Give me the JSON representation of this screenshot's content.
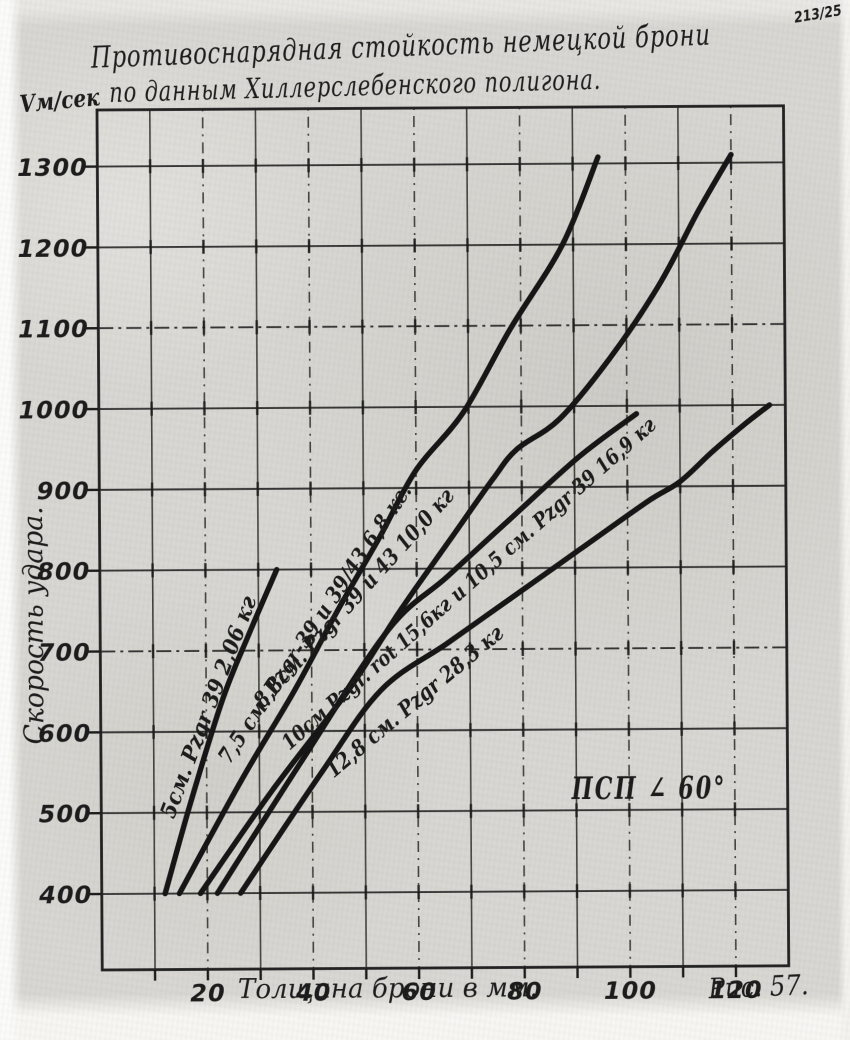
{
  "page": {
    "corner_note": "213/25",
    "paper_color": "#d8d7d2",
    "ink_color": "#1f1e1c"
  },
  "title": {
    "line1": "Противоснарядная  стойкость  немецкой  брони",
    "line2": "по  данным  Хиллерслебенского  полигона."
  },
  "y_axis": {
    "unit_label": "Vм/сек",
    "title": "Скорость  удара.",
    "ticks": [
      400,
      500,
      600,
      700,
      800,
      900,
      1000,
      1100,
      1200,
      1300
    ]
  },
  "x_axis": {
    "title": "Толщина  брони  в  мм.",
    "ticks": [
      20,
      40,
      60,
      80,
      100,
      120
    ]
  },
  "annotation": "ПСП ∠ 60°",
  "figure_caption": "Рис. 57.",
  "chart_data": {
    "type": "line",
    "title": "Противоснарядная стойкость немецкой брони по данным Хиллерслебенского полигона",
    "xlabel": "Толщина брони в мм",
    "ylabel": "Скорость удара, V м/сек",
    "xlim": [
      0,
      130
    ],
    "ylim": [
      306,
      1370
    ],
    "x_grid_step": 10,
    "y_grid_step": 100,
    "x_label_ticks": [
      20,
      40,
      60,
      80,
      100,
      120
    ],
    "y_label_ticks": [
      400,
      500,
      600,
      700,
      800,
      900,
      1000,
      1100,
      1200,
      1300
    ],
    "grid": true,
    "annotation": "ПСП ∠ 60°",
    "series": [
      {
        "name": "5 см Pzgr 39, 2,06 кг",
        "label": "5см. Pzgr 39 2,06 кг",
        "points": [
          [
            12,
            400
          ],
          [
            17,
            514
          ],
          [
            23,
            638
          ],
          [
            28,
            718
          ],
          [
            33.5,
            800
          ]
        ]
      },
      {
        "name": "7,5 см Pzgr 39 и 39/43, 6,8 кг",
        "label": "7,5 см. Pzgr-39 и 39/43  6,8 кг.",
        "points": [
          [
            14.7,
            400
          ],
          [
            26.6,
            540
          ],
          [
            36.7,
            650
          ],
          [
            45,
            749
          ],
          [
            53,
            839
          ],
          [
            60,
            922
          ],
          [
            69,
            993
          ],
          [
            78,
            1096
          ],
          [
            88,
            1200
          ],
          [
            94.8,
            1308
          ]
        ]
      },
      {
        "name": "8,8 см Pzgr 39 и 43, 10,0 кг",
        "label": "8,8см. Pzgr 39  и 43  10,0 кг",
        "points": [
          [
            18.7,
            400
          ],
          [
            32.3,
            526
          ],
          [
            46.9,
            650
          ],
          [
            56.9,
            749
          ],
          [
            66.4,
            836
          ],
          [
            74.5,
            910
          ],
          [
            79.1,
            947
          ],
          [
            87.2,
            984
          ],
          [
            96.7,
            1058
          ],
          [
            106.2,
            1149
          ],
          [
            113.7,
            1240
          ],
          [
            120,
            1310
          ]
        ]
      },
      {
        "name": "10 см Pzgr rot 15,6 кг и 10,5 см Pzgr 39 16,9 кг",
        "label": "10см Pzgr. rot 15,6кг и 10,5 см. Pzgr 39 16,9 кг",
        "points": [
          [
            21.9,
            400
          ],
          [
            38,
            563
          ],
          [
            54.5,
            724
          ],
          [
            65.8,
            790
          ],
          [
            78.3,
            864
          ],
          [
            91,
            938
          ],
          [
            101.8,
            990
          ]
        ]
      },
      {
        "name": "12,8 см Pzgr, 28,3 кг",
        "label": "12,8 см. Pzgr  28,3 кг",
        "points": [
          [
            26.3,
            400
          ],
          [
            41.8,
            549
          ],
          [
            53.1,
            650
          ],
          [
            65.8,
            708
          ],
          [
            78.3,
            765
          ],
          [
            91,
            823
          ],
          [
            103.7,
            881
          ],
          [
            110,
            906
          ],
          [
            116.2,
            943
          ],
          [
            122.6,
            978
          ],
          [
            127,
            1000
          ]
        ]
      }
    ]
  }
}
